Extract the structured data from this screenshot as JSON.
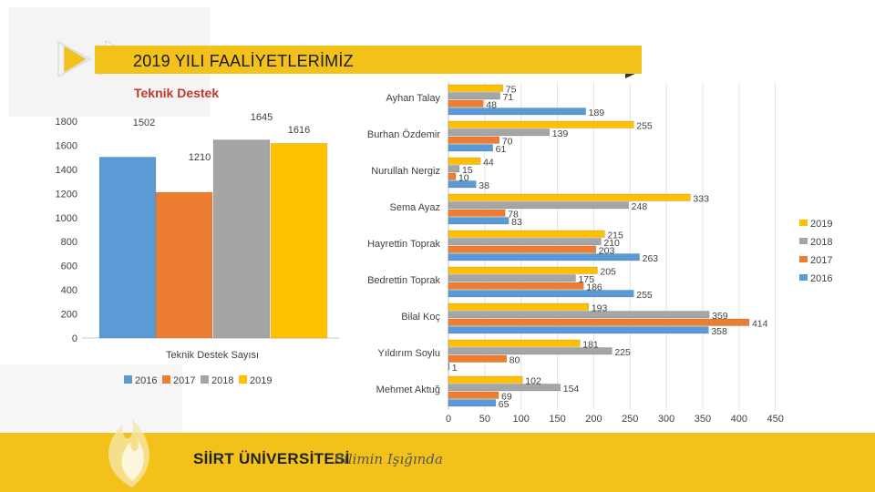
{
  "slide": {
    "title": "2019 YILI FAALİYETLERİMİZ",
    "subtitle": "Teknik Destek",
    "footer_brand": "SİİRT ÜNİVERSİTESİ",
    "footer_slogan": "Bilimin Işığında",
    "accent_color": "#F2C21B",
    "icons": [
      "play-arrow-icon",
      "flame-logo-icon",
      "dark-triangle-icon"
    ]
  },
  "chart_data": [
    {
      "type": "bar",
      "title": "Teknik Destek Sayısı",
      "categories": [
        "Teknik Destek Sayısı"
      ],
      "series": [
        {
          "name": "2016",
          "values": [
            1502
          ],
          "color": "#5B9BD5"
        },
        {
          "name": "2017",
          "values": [
            1210
          ],
          "color": "#ED7D31"
        },
        {
          "name": "2018",
          "values": [
            1645
          ],
          "color": "#A5A5A5"
        },
        {
          "name": "2019",
          "values": [
            1616
          ],
          "color": "#FFC000"
        }
      ],
      "ylim": [
        0,
        1800
      ],
      "yticks": [
        0,
        200,
        400,
        600,
        800,
        1000,
        1200,
        1400,
        1600,
        1800
      ],
      "legend": "bottom"
    },
    {
      "type": "bar",
      "orientation": "horizontal",
      "categories": [
        "Ayhan Talay",
        "Burhan Özdemir",
        "Nurullah Nergiz",
        "Sema Ayaz",
        "Hayrettin Toprak",
        "Bedrettin Toprak",
        "Bilal Koç",
        "Yıldırım Soylu",
        "Mehmet Aktuğ"
      ],
      "series": [
        {
          "name": "2019",
          "values": [
            75,
            255,
            44,
            333,
            215,
            205,
            193,
            181,
            102
          ],
          "color": "#FFC000"
        },
        {
          "name": "2018",
          "values": [
            71,
            139,
            15,
            248,
            210,
            175,
            359,
            225,
            154
          ],
          "color": "#A5A5A5"
        },
        {
          "name": "2017",
          "values": [
            48,
            70,
            10,
            78,
            203,
            186,
            414,
            80,
            69
          ],
          "color": "#ED7D31"
        },
        {
          "name": "2016",
          "values": [
            189,
            61,
            38,
            83,
            263,
            255,
            358,
            1,
            65
          ],
          "color": "#5B9BD5"
        }
      ],
      "xlim": [
        0,
        450
      ],
      "xticks": [
        0,
        50,
        100,
        150,
        200,
        250,
        300,
        350,
        400,
        450
      ],
      "legend": "right"
    }
  ]
}
